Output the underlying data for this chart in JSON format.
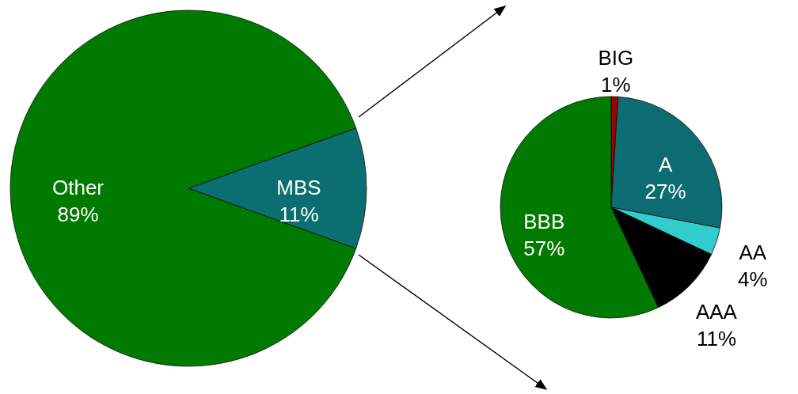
{
  "chart_data": [
    {
      "type": "pie",
      "categories": [
        "MBS",
        "Other"
      ],
      "values": [
        11,
        89
      ],
      "colors": [
        "#0b6e70",
        "#007a00"
      ],
      "value_labels": [
        "11%",
        "89%"
      ]
    },
    {
      "type": "pie",
      "categories": [
        "BIG",
        "A",
        "AA",
        "AAA",
        "BBB"
      ],
      "values": [
        1,
        27,
        4,
        11,
        57
      ],
      "colors": [
        "#a00000",
        "#0d6b72",
        "#33cccc",
        "#000000",
        "#007a00"
      ],
      "value_labels": [
        "1%",
        "27%",
        "4%",
        "11%",
        "57%"
      ]
    }
  ]
}
